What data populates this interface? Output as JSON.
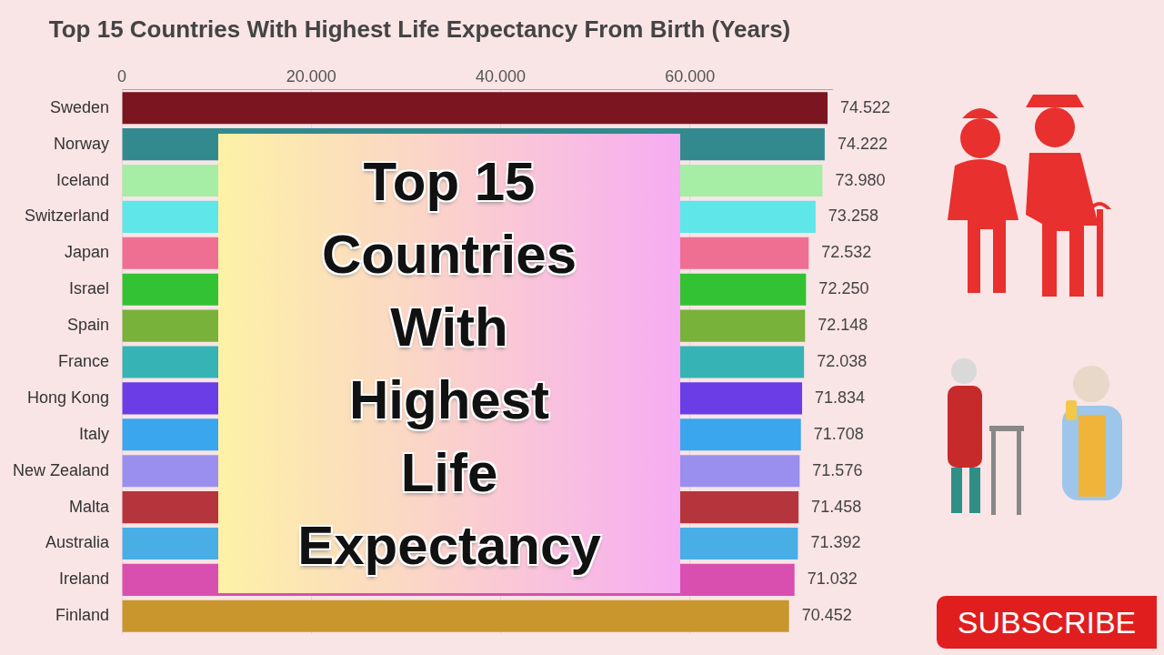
{
  "chart_data": {
    "type": "bar",
    "orientation": "horizontal",
    "title": "Top 15 Countries With Highest Life Expectancy From Birth (Years)",
    "categories": [
      "Sweden",
      "Norway",
      "Iceland",
      "Switzerland",
      "Japan",
      "Israel",
      "Spain",
      "France",
      "Hong Kong",
      "Italy",
      "New Zealand",
      "Malta",
      "Australia",
      "Ireland",
      "Finland"
    ],
    "values": [
      74522,
      74222,
      73980,
      73258,
      72532,
      72250,
      72148,
      72038,
      71834,
      71708,
      71576,
      71458,
      71392,
      71032,
      70452
    ],
    "value_labels": [
      "74.522",
      "74.222",
      "73.980",
      "73.258",
      "72.532",
      "72.250",
      "72.148",
      "72.038",
      "71.834",
      "71.708",
      "71.576",
      "71.458",
      "71.392",
      "71.032",
      "70.452"
    ],
    "colors": [
      "#7b1520",
      "#338a8e",
      "#a6eea6",
      "#5ee6e8",
      "#ee6f92",
      "#33c233",
      "#78b23a",
      "#36b3b5",
      "#6a3de6",
      "#3aa6ee",
      "#9a8eee",
      "#b6343c",
      "#4aaee6",
      "#d84fb0",
      "#c8962c"
    ],
    "xlim": [
      0,
      75000
    ],
    "xticks": [
      0,
      {
        "value": 20000,
        "label": "20.000"
      },
      {
        "value": 40000,
        "label": "40.000"
      },
      {
        "value": 60000,
        "label": "60.000"
      }
    ],
    "grid": true,
    "data_labels": true
  },
  "overlay": {
    "lines": [
      "Top 15",
      "Countries",
      "With",
      "Highest",
      "Life",
      "Expectancy"
    ]
  },
  "button": {
    "label": "SUBSCRIBE"
  }
}
